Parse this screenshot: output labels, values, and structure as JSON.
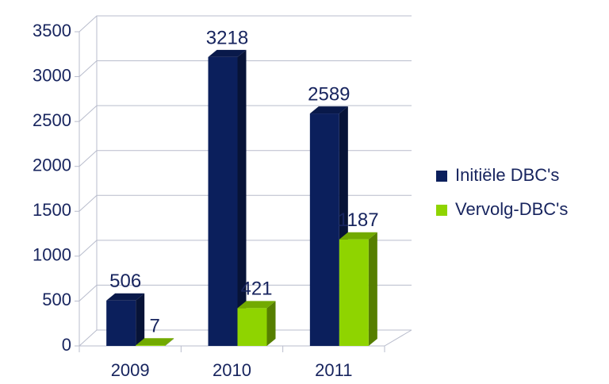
{
  "chart_data": {
    "type": "bar3d",
    "categories": [
      "2009",
      "2010",
      "2011"
    ],
    "series": [
      {
        "name": "Initiële DBC's",
        "color": "#0b1f5c",
        "values": [
          506,
          3218,
          2589
        ]
      },
      {
        "name": "Vervolg-DBC's",
        "color": "#8fd400",
        "values": [
          7,
          421,
          1187
        ]
      }
    ],
    "ylim": [
      0,
      3500
    ],
    "yticks": [
      0,
      500,
      1000,
      1500,
      2000,
      2500,
      3000,
      3500
    ],
    "grid": true,
    "legend": "right"
  }
}
